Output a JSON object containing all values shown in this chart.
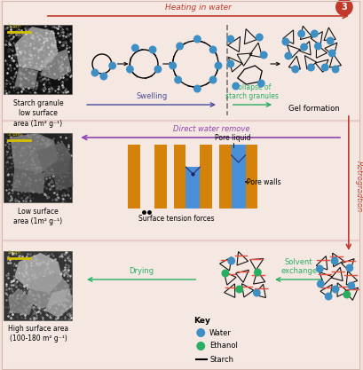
{
  "bg_color": "#f2e0d8",
  "top_arrow_label": "Heating in water",
  "top_arrow_color": "#c0392b",
  "swelling_label": "Swelling",
  "swelling_color": "#4a4a9c",
  "collapse_label": "Collapse of\nstarch granules",
  "collapse_color": "#27ae60",
  "gel_label": "Gel formation",
  "direct_water_label": "Direct water remove",
  "direct_water_color": "#8e44ad",
  "retrogradation_label": "Retrogradtion",
  "retrogradation_color": "#c0392b",
  "solvent_exchange_label": "Solvent\nexchange",
  "solvent_exchange_color": "#27ae60",
  "drying_label": "Drying",
  "drying_color": "#27ae60",
  "pore_liquid_label": "Pore liquid",
  "pore_walls_label": "Pore walls",
  "surface_tension_label": "Surface tension forces",
  "starch_granule_label": "Starch granule\nlow surface\narea (1m² g⁻¹)",
  "low_surface_label": "Low surface\narea (1m² g⁻¹)",
  "high_surface_label": "High surface area\n(100-180 m² g⁻¹)",
  "key_label": "Key",
  "water_label": "Water",
  "ethanol_label": "Ethanol",
  "starch_key_label": "Starch",
  "water_color": "#3d8fc4",
  "ethanol_color": "#27ae60",
  "orange_color": "#d4820a",
  "blue_fill": "#4a90d9",
  "figure_num": "3",
  "scale_bar_color": "#d4c000",
  "dashed_line_color": "#777777",
  "triangle_color": "#111111",
  "red_line_color": "#e74c3c",
  "row_sep_color": "#e8cccc"
}
